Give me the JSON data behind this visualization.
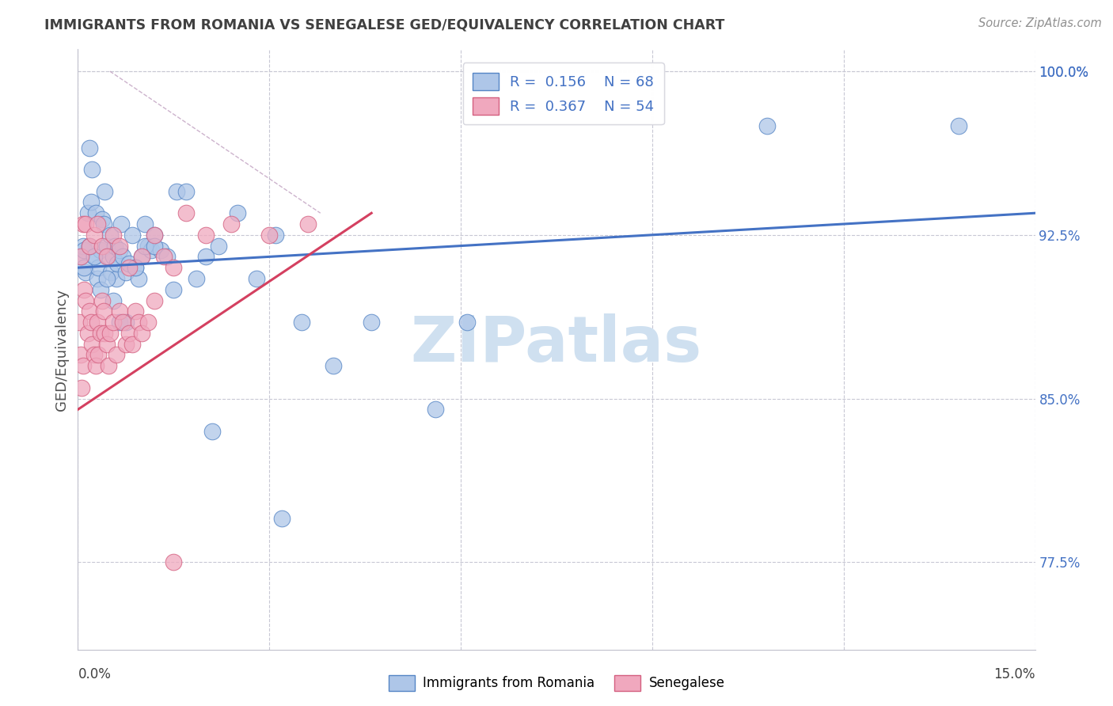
{
  "title": "IMMIGRANTS FROM ROMANIA VS SENEGALESE GED/EQUIVALENCY CORRELATION CHART",
  "source": "Source: ZipAtlas.com",
  "ylabel": "GED/Equivalency",
  "yticks": [
    77.5,
    85.0,
    92.5,
    100.0
  ],
  "ytick_labels": [
    "77.5%",
    "85.0%",
    "92.5%",
    "100.0%"
  ],
  "xmin": 0.0,
  "xmax": 15.0,
  "ymin": 73.5,
  "ymax": 101.0,
  "blue_color": "#aec6e8",
  "pink_color": "#f0a8be",
  "blue_edge_color": "#5585c5",
  "pink_edge_color": "#d46080",
  "blue_line_color": "#4472c4",
  "pink_line_color": "#d44060",
  "title_color": "#404040",
  "source_color": "#909090",
  "watermark_color": "#cfe0f0",
  "legend_text_color": "#4472c4",
  "romania_x": [
    0.05,
    0.08,
    0.1,
    0.12,
    0.15,
    0.18,
    0.2,
    0.22,
    0.25,
    0.28,
    0.3,
    0.32,
    0.35,
    0.38,
    0.4,
    0.42,
    0.45,
    0.48,
    0.5,
    0.52,
    0.55,
    0.58,
    0.6,
    0.62,
    0.65,
    0.68,
    0.7,
    0.75,
    0.8,
    0.85,
    0.9,
    0.95,
    1.0,
    1.05,
    1.1,
    1.15,
    1.2,
    1.3,
    1.4,
    1.55,
    1.7,
    1.85,
    2.0,
    2.2,
    2.5,
    2.8,
    3.1,
    3.5,
    4.0,
    4.6,
    5.6,
    6.1,
    10.8,
    13.8,
    0.1,
    0.18,
    0.25,
    0.35,
    0.45,
    0.55,
    0.65,
    0.75,
    0.9,
    1.05,
    1.2,
    1.5,
    2.1,
    3.2
  ],
  "romania_y": [
    91.5,
    92.0,
    91.8,
    90.8,
    93.5,
    96.5,
    94.0,
    95.5,
    91.5,
    93.5,
    90.5,
    91.0,
    91.8,
    93.2,
    93.0,
    94.5,
    92.0,
    91.5,
    92.5,
    90.8,
    91.5,
    92.0,
    90.5,
    91.2,
    91.8,
    93.0,
    91.5,
    90.8,
    91.2,
    92.5,
    91.0,
    90.5,
    91.5,
    93.0,
    92.0,
    91.8,
    92.5,
    91.8,
    91.5,
    94.5,
    94.5,
    90.5,
    91.5,
    92.0,
    93.5,
    90.5,
    92.5,
    88.5,
    86.5,
    88.5,
    84.5,
    88.5,
    97.5,
    97.5,
    91.0,
    92.0,
    91.5,
    90.0,
    90.5,
    89.5,
    88.5,
    88.5,
    91.0,
    92.0,
    92.0,
    90.0,
    83.5,
    79.5
  ],
  "senegal_x": [
    0.02,
    0.04,
    0.06,
    0.08,
    0.1,
    0.12,
    0.15,
    0.18,
    0.2,
    0.22,
    0.25,
    0.28,
    0.3,
    0.32,
    0.35,
    0.38,
    0.4,
    0.42,
    0.45,
    0.48,
    0.5,
    0.55,
    0.6,
    0.65,
    0.7,
    0.75,
    0.8,
    0.85,
    0.9,
    0.95,
    1.0,
    1.1,
    1.2,
    1.35,
    1.5,
    1.7,
    2.0,
    2.4,
    3.0,
    3.6,
    0.04,
    0.08,
    0.12,
    0.18,
    0.25,
    0.3,
    0.38,
    0.45,
    0.55,
    0.65,
    0.8,
    1.0,
    1.2,
    1.5
  ],
  "senegal_y": [
    88.5,
    87.0,
    85.5,
    86.5,
    90.0,
    89.5,
    88.0,
    89.0,
    88.5,
    87.5,
    87.0,
    86.5,
    88.5,
    87.0,
    88.0,
    89.5,
    89.0,
    88.0,
    87.5,
    86.5,
    88.0,
    88.5,
    87.0,
    89.0,
    88.5,
    87.5,
    88.0,
    87.5,
    89.0,
    88.5,
    88.0,
    88.5,
    89.5,
    91.5,
    91.0,
    93.5,
    92.5,
    93.0,
    92.5,
    93.0,
    91.5,
    93.0,
    93.0,
    92.0,
    92.5,
    93.0,
    92.0,
    91.5,
    92.5,
    92.0,
    91.0,
    91.5,
    92.5,
    77.5
  ],
  "watermark_text": "ZIPatlas",
  "blue_trend": [
    0.0,
    91.0,
    15.0,
    93.5
  ],
  "pink_trend": [
    0.0,
    84.5,
    4.6,
    93.5
  ],
  "diag_line": [
    0.5,
    100.0,
    3.8,
    93.5
  ],
  "legend_R1": "R = 0.156",
  "legend_N1": "N = 68",
  "legend_R2": "R = 0.367",
  "legend_N2": "N = 54"
}
